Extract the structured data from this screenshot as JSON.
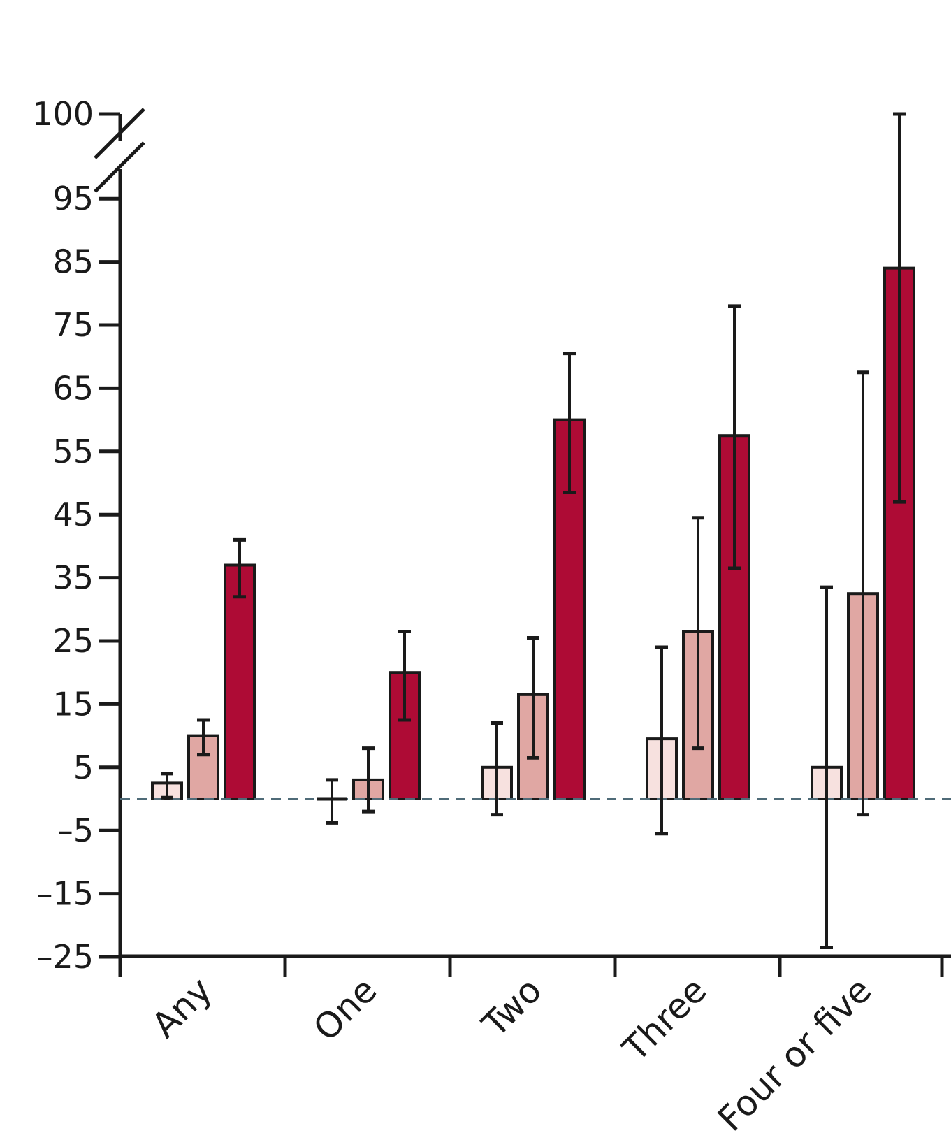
{
  "chart_data": {
    "type": "bar",
    "categories": [
      "Any",
      "One",
      "Two",
      "Three",
      "Four or five"
    ],
    "series": [
      {
        "values": [
          2.5,
          0,
          5,
          9.5,
          5
        ],
        "error_low": [
          0.2,
          -3.8,
          -2.5,
          -5.5,
          -23.5
        ],
        "error_high": [
          4.0,
          3.0,
          12.0,
          24.0,
          33.5
        ],
        "color": "#f7e1df"
      },
      {
        "values": [
          10,
          3,
          16.5,
          26.5,
          32.5
        ],
        "error_low": [
          7.0,
          -2.0,
          6.5,
          8.0,
          -2.5
        ],
        "error_high": [
          12.5,
          8.0,
          25.5,
          44.5,
          67.5
        ],
        "color": "#e0a7a3"
      },
      {
        "values": [
          37,
          20,
          60,
          57.5,
          84
        ],
        "error_low": [
          32.0,
          12.5,
          48.5,
          36.5,
          47.0
        ],
        "error_high": [
          41.0,
          26.5,
          70.5,
          78.0,
          100.0
        ],
        "color": "#ae0b35"
      }
    ],
    "yticks": [
      "100",
      "95",
      "85",
      "75",
      "65",
      "55",
      "45",
      "35",
      "25",
      "15",
      "5",
      "–5",
      "–15",
      "–25"
    ],
    "ylim": [
      -25,
      100
    ],
    "axis_break": true,
    "reference_line": 0,
    "reference_line_color": "#4f6b78",
    "title": "",
    "xlabel": "",
    "ylabel": ""
  }
}
